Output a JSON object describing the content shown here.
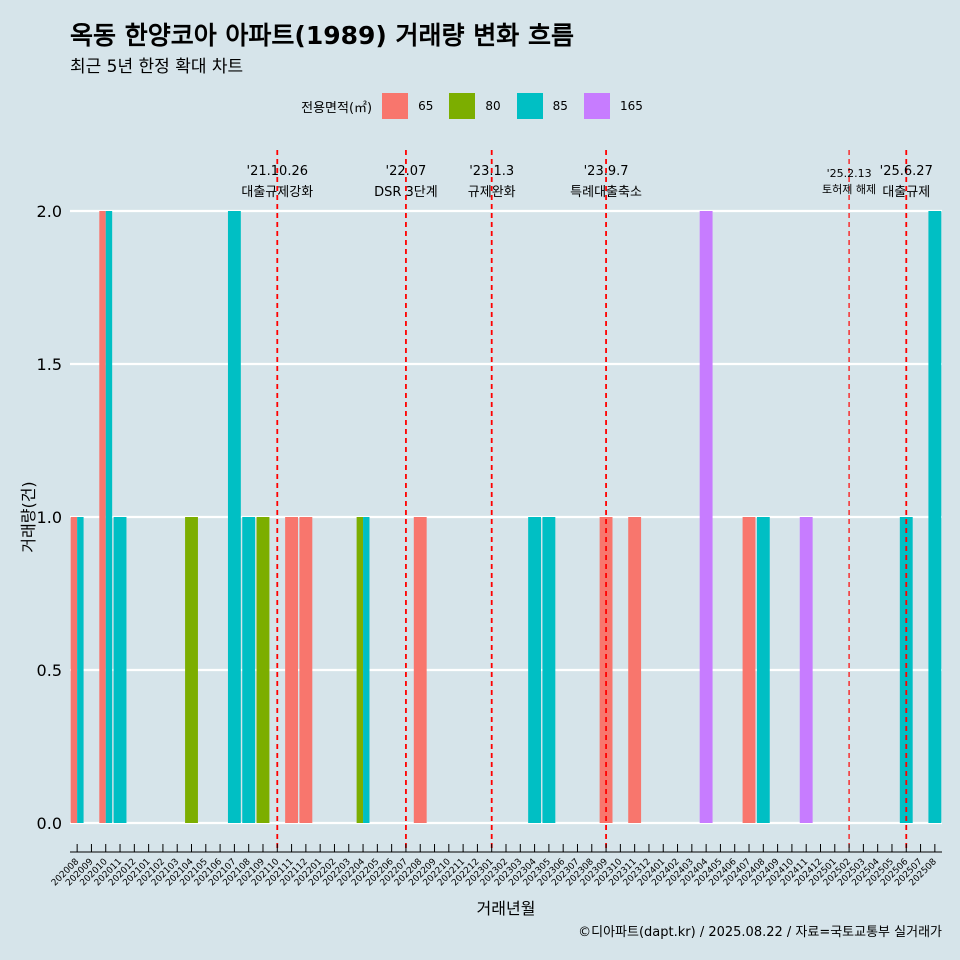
{
  "header": {
    "title": "옥동 한양코아 아파트(1989) 거래량 변화 흐름",
    "subtitle": "최근 5년 한정 확대 차트"
  },
  "caption": "©디아파트(dapt.kr) / 2025.08.22 / 자료=국토교통부 실거래가",
  "chart_data": {
    "type": "bar",
    "xlabel": "거래년월",
    "ylabel": "거래량(건)",
    "ylim": [
      0,
      2
    ],
    "yticks": [
      "0.0",
      "0.5",
      "1.0",
      "1.5",
      "2.0"
    ],
    "grid": true,
    "legend": {
      "title": "전용면적(㎡)",
      "position": "top"
    },
    "categories": [
      "202008",
      "202009",
      "202010",
      "202011",
      "202012",
      "202101",
      "202102",
      "202103",
      "202104",
      "202105",
      "202106",
      "202107",
      "202108",
      "202109",
      "202110",
      "202111",
      "202112",
      "202201",
      "202202",
      "202203",
      "202204",
      "202205",
      "202206",
      "202207",
      "202208",
      "202209",
      "202210",
      "202211",
      "202212",
      "202301",
      "202302",
      "202303",
      "202304",
      "202305",
      "202306",
      "202307",
      "202308",
      "202309",
      "202310",
      "202311",
      "202312",
      "202401",
      "202402",
      "202403",
      "202404",
      "202405",
      "202406",
      "202407",
      "202408",
      "202409",
      "202410",
      "202411",
      "202412",
      "202501",
      "202502",
      "202503",
      "202504",
      "202505",
      "202506",
      "202507",
      "202508"
    ],
    "series": [
      {
        "name": "65",
        "color": "#f8766d",
        "values": [
          1,
          0,
          2,
          0,
          0,
          0,
          0,
          0,
          0,
          0,
          0,
          0,
          0,
          0,
          0,
          1,
          1,
          0,
          0,
          0,
          0,
          0,
          0,
          0,
          1,
          0,
          0,
          0,
          0,
          0,
          0,
          0,
          0,
          0,
          0,
          0,
          0,
          1,
          0,
          1,
          0,
          0,
          0,
          0,
          0,
          0,
          0,
          1,
          0,
          0,
          0,
          0,
          0,
          0,
          0,
          0,
          0,
          0,
          0,
          0,
          0
        ]
      },
      {
        "name": "80",
        "color": "#7cae00",
        "values": [
          0,
          0,
          0,
          0,
          0,
          0,
          0,
          0,
          1,
          0,
          0,
          0,
          0,
          1,
          0,
          0,
          0,
          0,
          0,
          0,
          1,
          0,
          0,
          0,
          0,
          0,
          0,
          0,
          0,
          0,
          0,
          0,
          0,
          0,
          0,
          0,
          0,
          0,
          0,
          0,
          0,
          0,
          0,
          0,
          0,
          0,
          0,
          0,
          0,
          0,
          0,
          0,
          0,
          0,
          0,
          0,
          0,
          0,
          0,
          0,
          0
        ]
      },
      {
        "name": "85",
        "color": "#00bfc4",
        "values": [
          1,
          0,
          2,
          1,
          0,
          0,
          0,
          0,
          0,
          0,
          0,
          2,
          1,
          0,
          0,
          0,
          0,
          0,
          0,
          0,
          1,
          0,
          0,
          0,
          0,
          0,
          0,
          0,
          0,
          0,
          0,
          0,
          1,
          1,
          0,
          0,
          0,
          0,
          0,
          0,
          0,
          0,
          0,
          0,
          0,
          0,
          0,
          0,
          1,
          0,
          0,
          0,
          0,
          0,
          0,
          0,
          0,
          0,
          1,
          0,
          2
        ]
      },
      {
        "name": "165",
        "color": "#c77cff",
        "values": [
          0,
          0,
          0,
          0,
          0,
          0,
          0,
          0,
          0,
          0,
          0,
          0,
          0,
          0,
          0,
          0,
          0,
          0,
          0,
          0,
          0,
          0,
          0,
          0,
          0,
          0,
          0,
          0,
          0,
          0,
          0,
          0,
          0,
          0,
          0,
          0,
          0,
          0,
          0,
          0,
          0,
          0,
          0,
          0,
          2,
          0,
          0,
          0,
          0,
          0,
          0,
          1,
          0,
          0,
          0,
          0,
          0,
          0,
          0,
          0,
          0
        ]
      }
    ],
    "events": [
      {
        "category": "202110",
        "date": "'21.10.26",
        "label": "대출규제강화"
      },
      {
        "category": "202207",
        "date": "'22.07",
        "label": "DSR 3단계"
      },
      {
        "category": "202301",
        "date": "'23.1.3",
        "label": "규제완화"
      },
      {
        "category": "202309",
        "date": "'23.9.7",
        "label": "특례대출축소"
      },
      {
        "category": "202502",
        "date": "'25.2.13",
        "label": "토허제 해제"
      },
      {
        "category": "202506",
        "date": "'25.6.27",
        "label": "대출규제"
      }
    ],
    "event_line_color": "#ff0000"
  }
}
